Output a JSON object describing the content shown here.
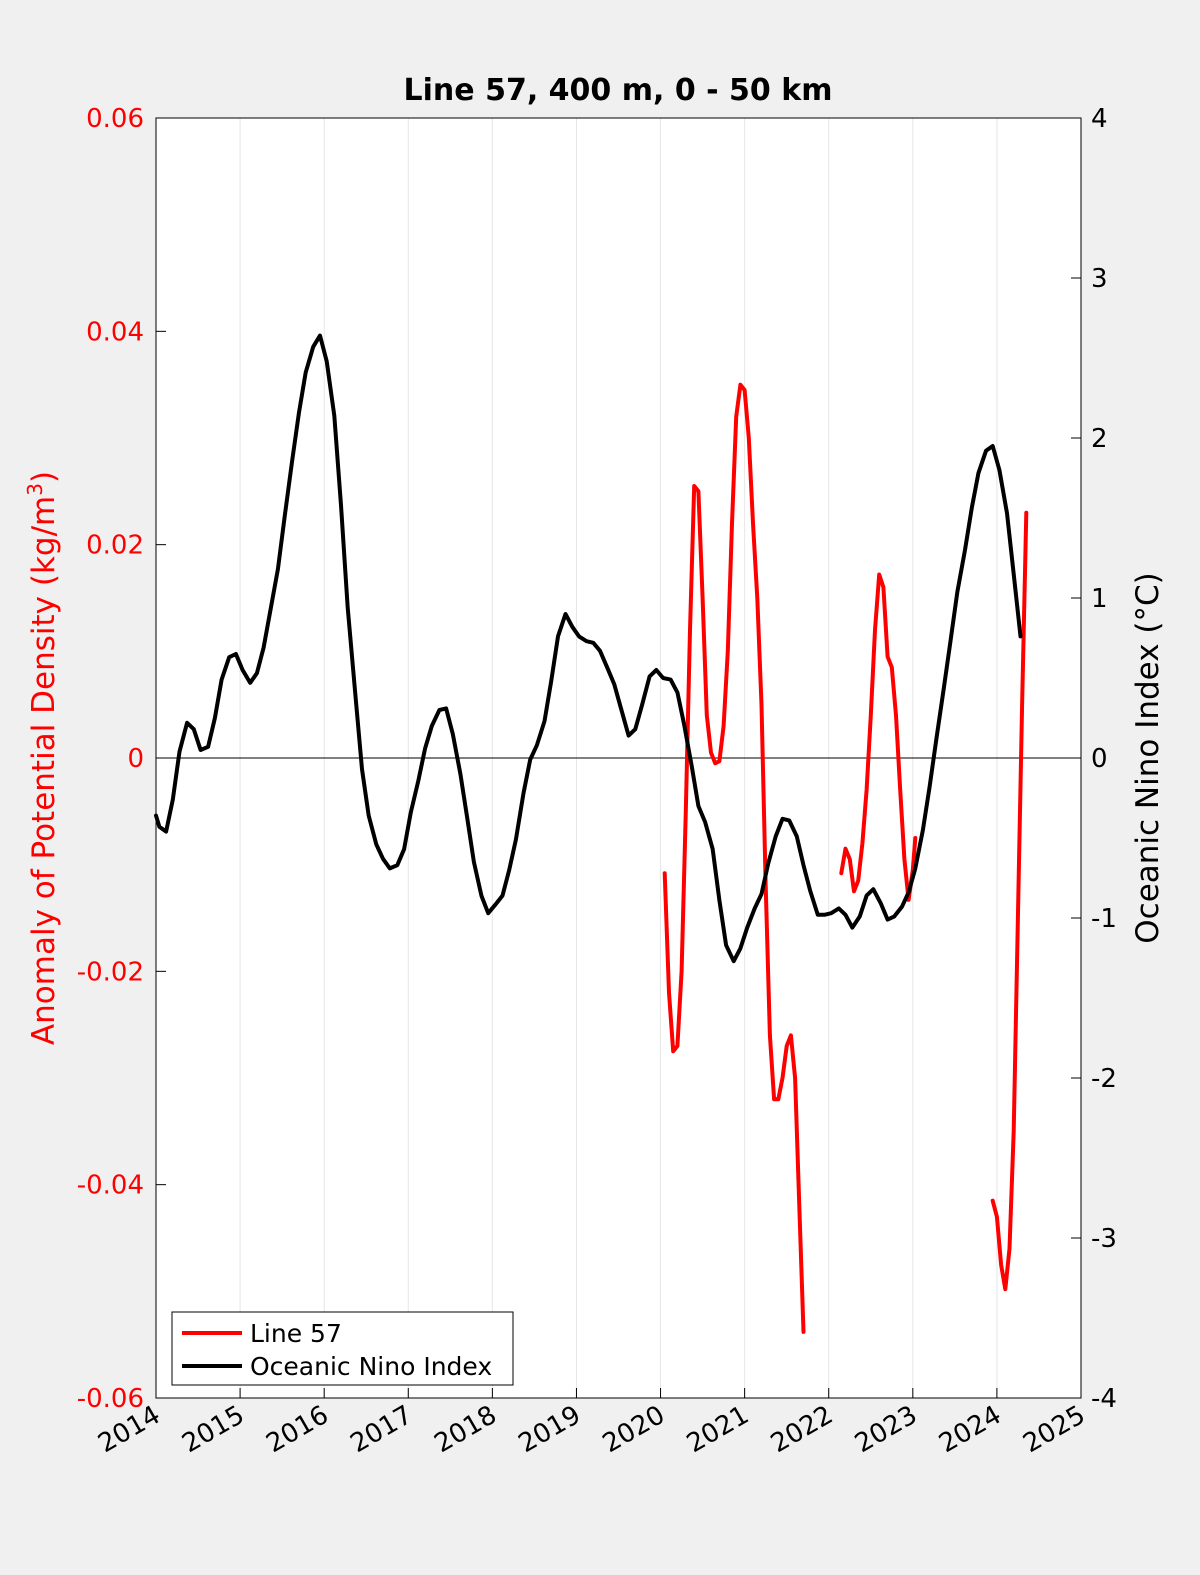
{
  "chart_data": {
    "type": "line",
    "title": "Line 57, 400 m, 0 - 50 km",
    "ylabel_left": "Anomaly of Potential Density (kg/m",
    "ylabel_left_sup": "3",
    "ylabel_left_suffix": ")",
    "ylabel_right": "Oceanic Nino Index (°C)",
    "xlim": [
      2014,
      2025
    ],
    "ylim_left": [
      -0.06,
      0.06
    ],
    "ylim_right": [
      -4,
      4
    ],
    "x_ticks": [
      "2014",
      "2015",
      "2016",
      "2017",
      "2018",
      "2019",
      "2020",
      "2021",
      "2022",
      "2023",
      "2024",
      "2025"
    ],
    "y_left_ticks": [
      "-0.06",
      "-0.04",
      "-0.02",
      "0",
      "0.02",
      "0.04",
      "0.06"
    ],
    "y_right_ticks": [
      "-4",
      "-3",
      "-2",
      "-1",
      "0",
      "1",
      "2",
      "3",
      "4"
    ],
    "grid": "vertical x grid",
    "legend_position": "bottom-left",
    "colors": {
      "line57": "#ff0000",
      "oni": "#000000",
      "left_axis": "#ff0000",
      "background": "#f0f0f0",
      "plot_area": "#ffffff"
    },
    "series": [
      {
        "name": "Line 57",
        "axis": "left",
        "color": "#ff0000",
        "segments": [
          [
            [
              2020.05,
              -0.0108
            ],
            [
              2020.1,
              -0.022
            ],
            [
              2020.15,
              -0.0275
            ],
            [
              2020.2,
              -0.027
            ],
            [
              2020.25,
              -0.02
            ],
            [
              2020.3,
              -0.005
            ],
            [
              2020.35,
              0.012
            ],
            [
              2020.4,
              0.0255
            ],
            [
              2020.45,
              0.025
            ],
            [
              2020.5,
              0.015
            ],
            [
              2020.55,
              0.004
            ],
            [
              2020.6,
              0.0005
            ],
            [
              2020.65,
              -0.0005
            ],
            [
              2020.7,
              -0.0003
            ],
            [
              2020.75,
              0.003
            ],
            [
              2020.8,
              0.01
            ],
            [
              2020.85,
              0.022
            ],
            [
              2020.9,
              0.032
            ],
            [
              2020.95,
              0.035
            ],
            [
              2021.0,
              0.0345
            ],
            [
              2021.05,
              0.03
            ],
            [
              2021.1,
              0.022
            ],
            [
              2021.15,
              0.015
            ],
            [
              2021.2,
              0.005
            ],
            [
              2021.25,
              -0.012
            ],
            [
              2021.3,
              -0.026
            ],
            [
              2021.35,
              -0.032
            ],
            [
              2021.4,
              -0.032
            ],
            [
              2021.45,
              -0.03
            ],
            [
              2021.5,
              -0.027
            ],
            [
              2021.55,
              -0.026
            ],
            [
              2021.6,
              -0.03
            ],
            [
              2021.65,
              -0.042
            ],
            [
              2021.7,
              -0.0538
            ]
          ],
          [
            [
              2022.15,
              -0.0108
            ],
            [
              2022.2,
              -0.0085
            ],
            [
              2022.25,
              -0.0095
            ],
            [
              2022.3,
              -0.0125
            ],
            [
              2022.35,
              -0.0115
            ],
            [
              2022.4,
              -0.008
            ],
            [
              2022.45,
              -0.003
            ],
            [
              2022.5,
              0.004
            ],
            [
              2022.55,
              0.012
            ],
            [
              2022.6,
              0.0172
            ],
            [
              2022.65,
              0.016
            ],
            [
              2022.7,
              0.0095
            ],
            [
              2022.75,
              0.0085
            ],
            [
              2022.8,
              0.004
            ],
            [
              2022.85,
              -0.003
            ],
            [
              2022.9,
              -0.0095
            ],
            [
              2022.95,
              -0.0133
            ],
            [
              2023.0,
              -0.0105
            ],
            [
              2023.03,
              -0.0075
            ]
          ],
          [
            [
              2023.95,
              -0.0415
            ],
            [
              2024.0,
              -0.043
            ],
            [
              2024.05,
              -0.0475
            ],
            [
              2024.1,
              -0.0498
            ],
            [
              2024.15,
              -0.046
            ],
            [
              2024.2,
              -0.035
            ],
            [
              2024.25,
              -0.015
            ],
            [
              2024.3,
              0.005
            ],
            [
              2024.35,
              0.023
            ]
          ]
        ]
      },
      {
        "name": "Oceanic Nino Index",
        "axis": "right",
        "color": "#000000",
        "segments": [
          [
            [
              2014.0,
              -0.36
            ],
            [
              2014.04,
              -0.43
            ],
            [
              2014.12,
              -0.46
            ],
            [
              2014.2,
              -0.26
            ],
            [
              2014.28,
              0.04
            ],
            [
              2014.37,
              0.22
            ],
            [
              2014.45,
              0.18
            ],
            [
              2014.53,
              0.05
            ],
            [
              2014.62,
              0.07
            ],
            [
              2014.7,
              0.25
            ],
            [
              2014.78,
              0.49
            ],
            [
              2014.87,
              0.63
            ],
            [
              2014.95,
              0.65
            ],
            [
              2015.03,
              0.55
            ],
            [
              2015.12,
              0.47
            ],
            [
              2015.2,
              0.53
            ],
            [
              2015.28,
              0.69
            ],
            [
              2015.37,
              0.95
            ],
            [
              2015.45,
              1.18
            ],
            [
              2015.53,
              1.51
            ],
            [
              2015.62,
              1.86
            ],
            [
              2015.7,
              2.16
            ],
            [
              2015.78,
              2.41
            ],
            [
              2015.87,
              2.57
            ],
            [
              2015.95,
              2.64
            ],
            [
              2016.03,
              2.48
            ],
            [
              2016.12,
              2.14
            ],
            [
              2016.2,
              1.58
            ],
            [
              2016.28,
              0.94
            ],
            [
              2016.37,
              0.4
            ],
            [
              2016.45,
              -0.07
            ],
            [
              2016.53,
              -0.36
            ],
            [
              2016.62,
              -0.54
            ],
            [
              2016.7,
              -0.63
            ],
            [
              2016.78,
              -0.69
            ],
            [
              2016.87,
              -0.67
            ],
            [
              2016.95,
              -0.57
            ],
            [
              2017.03,
              -0.34
            ],
            [
              2017.12,
              -0.14
            ],
            [
              2017.2,
              0.06
            ],
            [
              2017.28,
              0.2
            ],
            [
              2017.37,
              0.3
            ],
            [
              2017.45,
              0.31
            ],
            [
              2017.53,
              0.15
            ],
            [
              2017.62,
              -0.1
            ],
            [
              2017.7,
              -0.37
            ],
            [
              2017.78,
              -0.65
            ],
            [
              2017.87,
              -0.86
            ],
            [
              2017.95,
              -0.97
            ],
            [
              2018.03,
              -0.92
            ],
            [
              2018.12,
              -0.86
            ],
            [
              2018.2,
              -0.7
            ],
            [
              2018.28,
              -0.51
            ],
            [
              2018.37,
              -0.22
            ],
            [
              2018.45,
              -0.01
            ],
            [
              2018.53,
              0.08
            ],
            [
              2018.62,
              0.23
            ],
            [
              2018.7,
              0.48
            ],
            [
              2018.78,
              0.76
            ],
            [
              2018.87,
              0.9
            ],
            [
              2018.95,
              0.82
            ],
            [
              2019.03,
              0.76
            ],
            [
              2019.12,
              0.73
            ],
            [
              2019.2,
              0.72
            ],
            [
              2019.28,
              0.67
            ],
            [
              2019.37,
              0.56
            ],
            [
              2019.45,
              0.46
            ],
            [
              2019.53,
              0.31
            ],
            [
              2019.62,
              0.14
            ],
            [
              2019.7,
              0.18
            ],
            [
              2019.78,
              0.33
            ],
            [
              2019.87,
              0.51
            ],
            [
              2019.95,
              0.55
            ],
            [
              2020.03,
              0.5
            ],
            [
              2020.12,
              0.49
            ],
            [
              2020.2,
              0.41
            ],
            [
              2020.28,
              0.21
            ],
            [
              2020.37,
              -0.05
            ],
            [
              2020.45,
              -0.3
            ],
            [
              2020.53,
              -0.4
            ],
            [
              2020.62,
              -0.57
            ],
            [
              2020.7,
              -0.89
            ],
            [
              2020.78,
              -1.17
            ],
            [
              2020.87,
              -1.27
            ],
            [
              2020.95,
              -1.19
            ],
            [
              2021.03,
              -1.06
            ],
            [
              2021.12,
              -0.94
            ],
            [
              2021.2,
              -0.85
            ],
            [
              2021.28,
              -0.66
            ],
            [
              2021.37,
              -0.49
            ],
            [
              2021.45,
              -0.38
            ],
            [
              2021.53,
              -0.39
            ],
            [
              2021.62,
              -0.49
            ],
            [
              2021.7,
              -0.67
            ],
            [
              2021.78,
              -0.83
            ],
            [
              2021.87,
              -0.98
            ],
            [
              2021.95,
              -0.98
            ],
            [
              2022.03,
              -0.97
            ],
            [
              2022.12,
              -0.94
            ],
            [
              2022.2,
              -0.98
            ],
            [
              2022.28,
              -1.06
            ],
            [
              2022.37,
              -0.99
            ],
            [
              2022.45,
              -0.86
            ],
            [
              2022.53,
              -0.82
            ],
            [
              2022.62,
              -0.91
            ],
            [
              2022.7,
              -1.01
            ],
            [
              2022.78,
              -0.99
            ],
            [
              2022.87,
              -0.93
            ],
            [
              2022.95,
              -0.84
            ],
            [
              2023.03,
              -0.69
            ],
            [
              2023.12,
              -0.45
            ],
            [
              2023.2,
              -0.18
            ],
            [
              2023.28,
              0.12
            ],
            [
              2023.37,
              0.44
            ],
            [
              2023.45,
              0.74
            ],
            [
              2023.53,
              1.04
            ],
            [
              2023.62,
              1.3
            ],
            [
              2023.7,
              1.56
            ],
            [
              2023.78,
              1.78
            ],
            [
              2023.87,
              1.92
            ],
            [
              2023.95,
              1.95
            ],
            [
              2024.03,
              1.8
            ],
            [
              2024.12,
              1.53
            ],
            [
              2024.2,
              1.15
            ],
            [
              2024.28,
              0.76
            ]
          ]
        ]
      }
    ]
  }
}
